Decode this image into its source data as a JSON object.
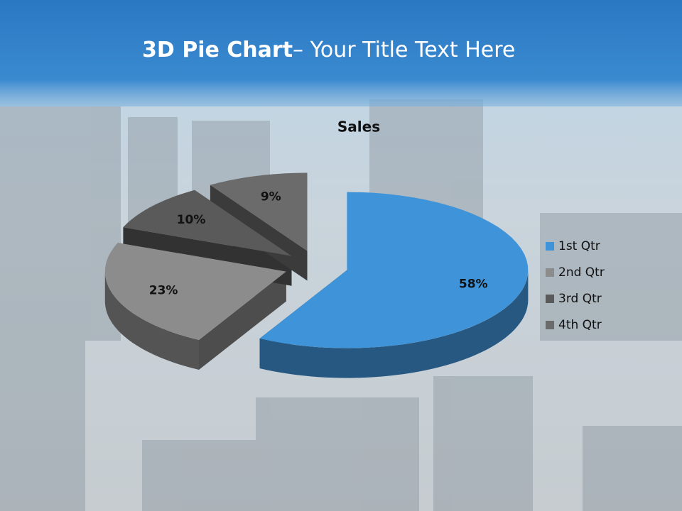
{
  "slide": {
    "title_bold": "3D Pie Chart",
    "title_rest": "– Your Title Text Here"
  },
  "chart_data": {
    "type": "pie",
    "title": "Sales",
    "categories": [
      "1st Qtr",
      "2nd Qtr",
      "3rd Qtr",
      "4th Qtr"
    ],
    "values": [
      58,
      23,
      10,
      9
    ],
    "value_labels": [
      "58%",
      "23%",
      "10%",
      "9%"
    ],
    "colors": [
      "#3f93d8",
      "#8c8c8c",
      "#5a5a5a",
      "#6b6b6b"
    ],
    "legend": "right"
  }
}
